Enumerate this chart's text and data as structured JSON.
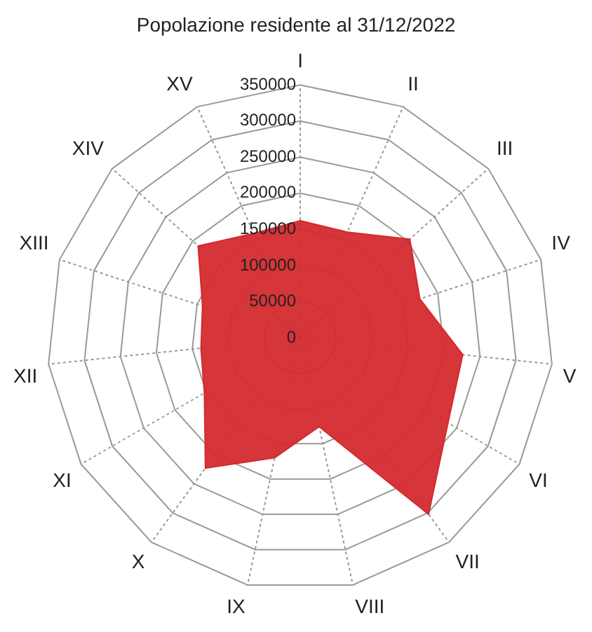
{
  "chart_data": {
    "type": "radar",
    "title": "Popolazione residente al 31/12/2022",
    "categories": [
      "I",
      "II",
      "III",
      "IV",
      "V",
      "VI",
      "VII",
      "VIII",
      "IX",
      "X",
      "XI",
      "XII",
      "XIII",
      "XIV",
      "XV"
    ],
    "series": [
      {
        "color": "#d42a2e",
        "values": [
          162000,
          160000,
          204000,
          174000,
          226000,
          236000,
          302000,
          126000,
          170000,
          223000,
          153000,
          138000,
          142000,
          190000,
          158000
        ]
      }
    ],
    "ylim": [
      0,
      350000
    ],
    "yticks": [
      0,
      50000,
      100000,
      150000,
      200000,
      250000,
      300000,
      350000
    ],
    "grid": true,
    "legend": false
  }
}
